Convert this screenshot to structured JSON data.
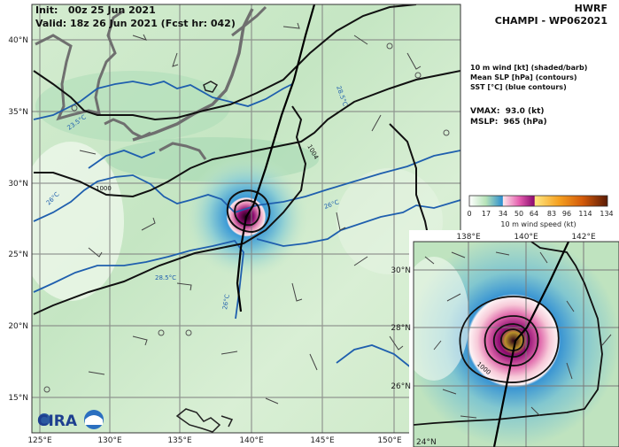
{
  "header": {
    "init_line": "Init:   00z 25 Jun 2021",
    "valid_line": "Valid: 18z 26 Jun 2021 (Fcst hr: 042)",
    "model": "HWRF",
    "storm": "CHAMPI - WP062021"
  },
  "legend": {
    "line1": "10 m wind [kt] (shaded/barb)",
    "line2": "Mean SLP [hPa] (contours)",
    "line3": "SST [°C] (blue contours)",
    "vmax": "VMAX:  93.0 (kt)",
    "mslp": "MSLP:  965 (hPa)"
  },
  "colorbar": {
    "label": "10 m wind speed (kt)",
    "ticks": [
      "0",
      "17",
      "34",
      "50",
      "64",
      "83",
      "96",
      "114",
      "134"
    ],
    "colors": [
      "#ffffff",
      "#9fd9a8",
      "#2c8fd0",
      "#fde0e4",
      "#e65fb0",
      "#8b0a6f",
      "#ffe680",
      "#f5a020",
      "#d35a0a",
      "#5a1a05"
    ]
  },
  "main_map": {
    "lat_labels": [
      "40°N",
      "35°N",
      "30°N",
      "25°N",
      "20°N",
      "15°N"
    ],
    "lon_labels": [
      "125°E",
      "130°E",
      "135°E",
      "140°E",
      "145°E",
      "150°E"
    ],
    "contour_labels": [
      "23.5°C",
      "26°C",
      "28.5°C",
      "26°C",
      "1004",
      "1000",
      "26°C",
      "28.5°C"
    ],
    "logo": "CIRA"
  },
  "inset_map": {
    "lat_labels": [
      "30°N",
      "28°N",
      "26°N",
      "24°N"
    ],
    "lon_labels": [
      "138°E",
      "140°E",
      "142°E"
    ],
    "contour_labels": [
      "1000"
    ]
  }
}
